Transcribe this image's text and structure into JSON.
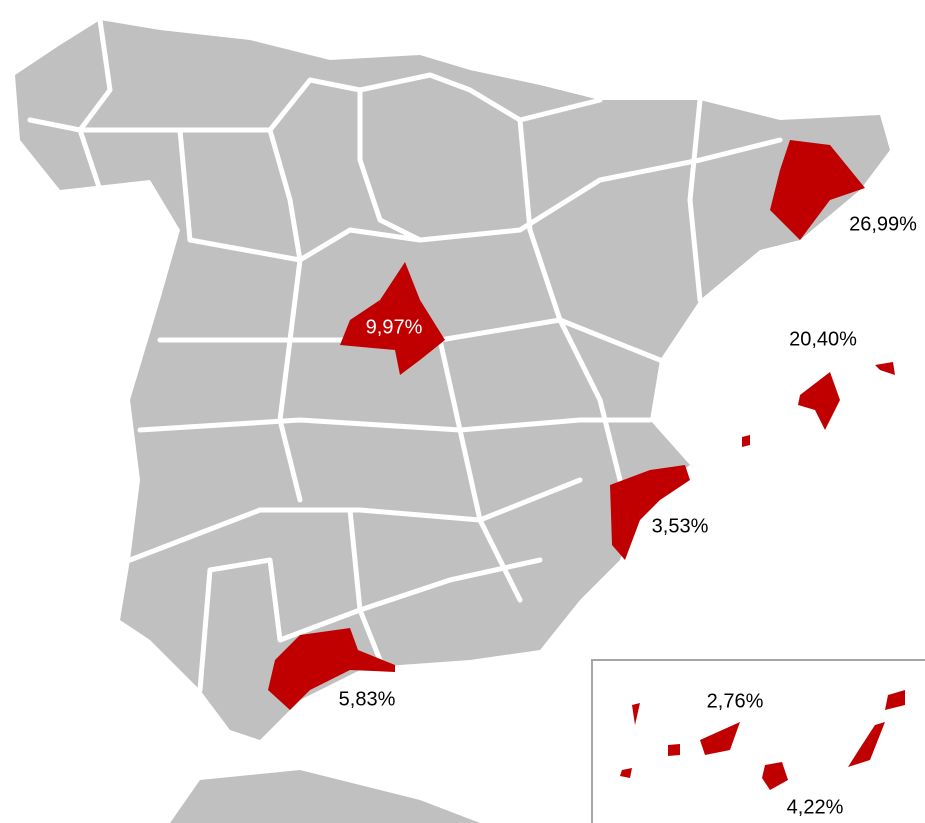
{
  "map": {
    "values": [
      26.99,
      20.4,
      9.97,
      3.53,
      5.83,
      2.76,
      4.22
    ],
    "value_labels": [
      "26,99%",
      "20,40%",
      "9,97%",
      "3,53%",
      "5,83%",
      "2,76%",
      "4,22%"
    ],
    "highlight_color": "#c00000",
    "base_color": "#c0c0c0"
  }
}
